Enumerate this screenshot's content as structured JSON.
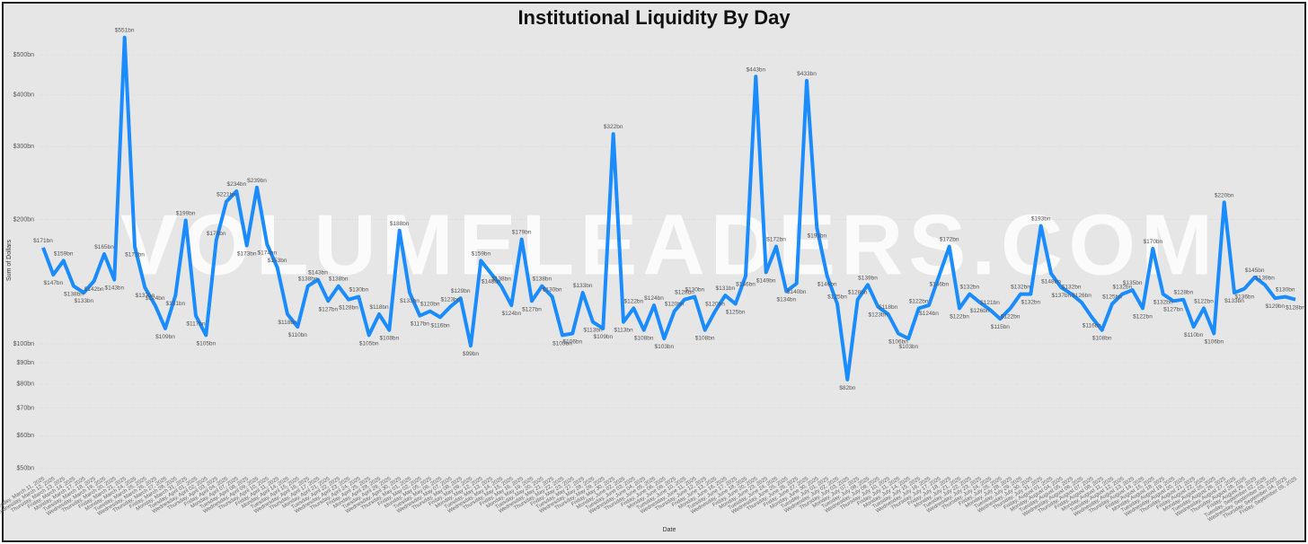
{
  "chart_data": {
    "type": "line",
    "title": "Institutional Liquidity By Day",
    "x_label": "Date",
    "y_label": "Sum of Dollars",
    "watermark": "VOLUMELEADERS.COM",
    "log_scale": true,
    "grid": true,
    "color": "#1a8cff",
    "ylim": [
      48,
      590
    ],
    "yticks": [
      {
        "value": 50,
        "label": "$50bn"
      },
      {
        "value": 60,
        "label": "$60bn"
      },
      {
        "value": 70,
        "label": "$70bn"
      },
      {
        "value": 80,
        "label": "$80bn"
      },
      {
        "value": 90,
        "label": "$90bn"
      },
      {
        "value": 100,
        "label": "$100bn"
      },
      {
        "value": 200,
        "label": "$200bn"
      },
      {
        "value": 300,
        "label": "$300bn"
      },
      {
        "value": 400,
        "label": "$400bn"
      },
      {
        "value": 500,
        "label": "$500bn"
      }
    ],
    "categories": [
      "Tuesday, March 11, 2025",
      "Wednesday, March 12, 2025",
      "Thursday, March 13, 2025",
      "Friday, March 14, 2025",
      "Monday, March 17, 2025",
      "Tuesday, March 18, 2025",
      "Wednesday, March 19, 2025",
      "Thursday, March 20, 2025",
      "Friday, March 21, 2025",
      "Monday, March 24, 2025",
      "Tuesday, March 25, 2025",
      "Wednesday, March 26, 2025",
      "Thursday, March 27, 2025",
      "Friday, March 28, 2025",
      "Monday, March 31, 2025",
      "Tuesday, April 01, 2025",
      "Wednesday, April 02, 2025",
      "Thursday, April 03, 2025",
      "Friday, April 04, 2025",
      "Monday, April 07, 2025",
      "Tuesday, April 08, 2025",
      "Wednesday, April 09, 2025",
      "Thursday, April 10, 2025",
      "Friday, April 11, 2025",
      "Monday, April 14, 2025",
      "Tuesday, April 15, 2025",
      "Wednesday, April 16, 2025",
      "Thursday, April 17, 2025",
      "Monday, April 21, 2025",
      "Tuesday, April 22, 2025",
      "Wednesday, April 23, 2025",
      "Thursday, April 24, 2025",
      "Friday, April 25, 2025",
      "Monday, April 28, 2025",
      "Tuesday, April 29, 2025",
      "Wednesday, April 30, 2025",
      "Thursday, May 01, 2025",
      "Friday, May 02, 2025",
      "Monday, May 05, 2025",
      "Tuesday, May 06, 2025",
      "Wednesday, May 07, 2025",
      "Thursday, May 08, 2025",
      "Friday, May 09, 2025",
      "Monday, May 12, 2025",
      "Tuesday, May 13, 2025",
      "Wednesday, May 14, 2025",
      "Thursday, May 15, 2025",
      "Friday, May 16, 2025",
      "Monday, May 19, 2025",
      "Tuesday, May 20, 2025",
      "Wednesday, May 21, 2025",
      "Thursday, May 22, 2025",
      "Friday, May 23, 2025",
      "Tuesday, May 27, 2025",
      "Wednesday, May 28, 2025",
      "Thursday, May 29, 2025",
      "Friday, May 30, 2025",
      "Monday, June 02, 2025",
      "Tuesday, June 03, 2025",
      "Wednesday, June 04, 2025",
      "Thursday, June 05, 2025",
      "Friday, June 06, 2025",
      "Monday, June 09, 2025",
      "Tuesday, June 10, 2025",
      "Wednesday, June 11, 2025",
      "Thursday, June 12, 2025",
      "Friday, June 13, 2025",
      "Monday, June 16, 2025",
      "Tuesday, June 17, 2025",
      "Wednesday, June 18, 2025",
      "Friday, June 20, 2025",
      "Monday, June 23, 2025",
      "Tuesday, June 24, 2025",
      "Wednesday, June 25, 2025",
      "Thursday, June 26, 2025",
      "Friday, June 27, 2025",
      "Monday, June 30, 2025",
      "Tuesday, July 01, 2025",
      "Wednesday, July 02, 2025",
      "Thursday, July 03, 2025",
      "Monday, July 07, 2025",
      "Tuesday, July 08, 2025",
      "Wednesday, July 09, 2025",
      "Thursday, July 10, 2025",
      "Friday, July 11, 2025",
      "Monday, July 14, 2025",
      "Tuesday, July 15, 2025",
      "Wednesday, July 16, 2025",
      "Thursday, July 17, 2025",
      "Friday, July 18, 2025",
      "Monday, July 21, 2025",
      "Tuesday, July 22, 2025",
      "Wednesday, July 23, 2025",
      "Thursday, July 24, 2025",
      "Friday, July 25, 2025",
      "Monday, July 28, 2025",
      "Tuesday, July 29, 2025",
      "Wednesday, July 30, 2025",
      "Thursday, July 31, 2025",
      "Friday, August 01, 2025",
      "Monday, August 04, 2025",
      "Tuesday, August 05, 2025",
      "Wednesday, August 06, 2025",
      "Thursday, August 07, 2025",
      "Friday, August 08, 2025",
      "Monday, August 11, 2025",
      "Tuesday, August 12, 2025",
      "Wednesday, August 13, 2025",
      "Thursday, August 14, 2025",
      "Friday, August 15, 2025",
      "Monday, August 18, 2025",
      "Tuesday, August 19, 2025",
      "Wednesday, August 20, 2025",
      "Thursday, August 21, 2025",
      "Friday, August 22, 2025",
      "Monday, August 25, 2025",
      "Tuesday, August 26, 2025",
      "Wednesday, August 27, 2025",
      "Thursday, August 28, 2025",
      "Friday, August 29, 2025",
      "Tuesday, September 02, 2025",
      "Wednesday, September 03, 2025",
      "Thursday, September 04, 2025",
      "Friday, September 05, 2025"
    ],
    "values": [
      171,
      147,
      159,
      138,
      133,
      142,
      165,
      143,
      551,
      172,
      137,
      124,
      109,
      131,
      199,
      117,
      105,
      178,
      221,
      234,
      173,
      239,
      174,
      153,
      118,
      110,
      138,
      143,
      127,
      138,
      128,
      130,
      105,
      118,
      108,
      188,
      133,
      117,
      120,
      116,
      123,
      129,
      99,
      159,
      148,
      138,
      124,
      179,
      127,
      138,
      130,
      105,
      106,
      133,
      113,
      109,
      322,
      113,
      122,
      108,
      124,
      103,
      120,
      128,
      130,
      108,
      120,
      131,
      125,
      146,
      443,
      149,
      172,
      134,
      140,
      433,
      191,
      146,
      125,
      82,
      128,
      139,
      123,
      118,
      106,
      103,
      122,
      124,
      146,
      172,
      122,
      132,
      126,
      121,
      115,
      122,
      132,
      132,
      193,
      148,
      137,
      132,
      126,
      116,
      108,
      125,
      132,
      135,
      122,
      170,
      132,
      127,
      128,
      110,
      122,
      106,
      220,
      133,
      136,
      145,
      139,
      129,
      130,
      128
    ],
    "value_labels": [
      "$171bn",
      "$147bn",
      "$159bn",
      "$138bn",
      "$133bn",
      "$142bn",
      "$165bn",
      "$143bn",
      "$551bn",
      "$172bn",
      "$137bn",
      "$124bn",
      "$109bn",
      "$131bn",
      "$199bn",
      "$117bn",
      "$105bn",
      "$178bn",
      "$221bn",
      "$234bn",
      "$173bn",
      "$239bn",
      "$174bn",
      "$153bn",
      "$118bn",
      "$110bn",
      "$138bn",
      "$143bn",
      "$127bn",
      "$138bn",
      "$128bn",
      "$130bn",
      "$105bn",
      "$118bn",
      "$108bn",
      "$188bn",
      "$133bn",
      "$117bn",
      "$120bn",
      "$116bn",
      "$123bn",
      "$129bn",
      "$99bn",
      "$159bn",
      "$148bn",
      "$138bn",
      "$124bn",
      "$179bn",
      "$127bn",
      "$138bn",
      "$130bn",
      "$105bn",
      "$106bn",
      "$133bn",
      "$113bn",
      "$109bn",
      "$322bn",
      "$113bn",
      "$122bn",
      "$108bn",
      "$124bn",
      "$103bn",
      "$120bn",
      "$128bn",
      "$130bn",
      "$108bn",
      "$120bn",
      "$131bn",
      "$125bn",
      "$146bn",
      "$443bn",
      "$149bn",
      "$172bn",
      "$134bn",
      "$140bn",
      "$433bn",
      "$191bn",
      "$146bn",
      "$125bn",
      "$82bn",
      "$128bn",
      "$139bn",
      "$123bn",
      "$118bn",
      "$106bn",
      "$103bn",
      "$122bn",
      "$124bn",
      "$146bn",
      "$172bn",
      "$122bn",
      "$132bn",
      "$126bn",
      "$121bn",
      "$115bn",
      "$122bn",
      "$132bn",
      "$132bn",
      "$193bn",
      "$148bn",
      "$137bn",
      "$132bn",
      "$126bn",
      "$116bn",
      "$108bn",
      "$125bn",
      "$132bn",
      "$135bn",
      "$122bn",
      "$170bn",
      "$132bn",
      "$127bn",
      "$128bn",
      "$110bn",
      "$122bn",
      "$106bn",
      "$220bn",
      "$133bn",
      "$136bn",
      "$145bn",
      "$139bn",
      "$129bn",
      "$130bn",
      "$128bn"
    ]
  }
}
